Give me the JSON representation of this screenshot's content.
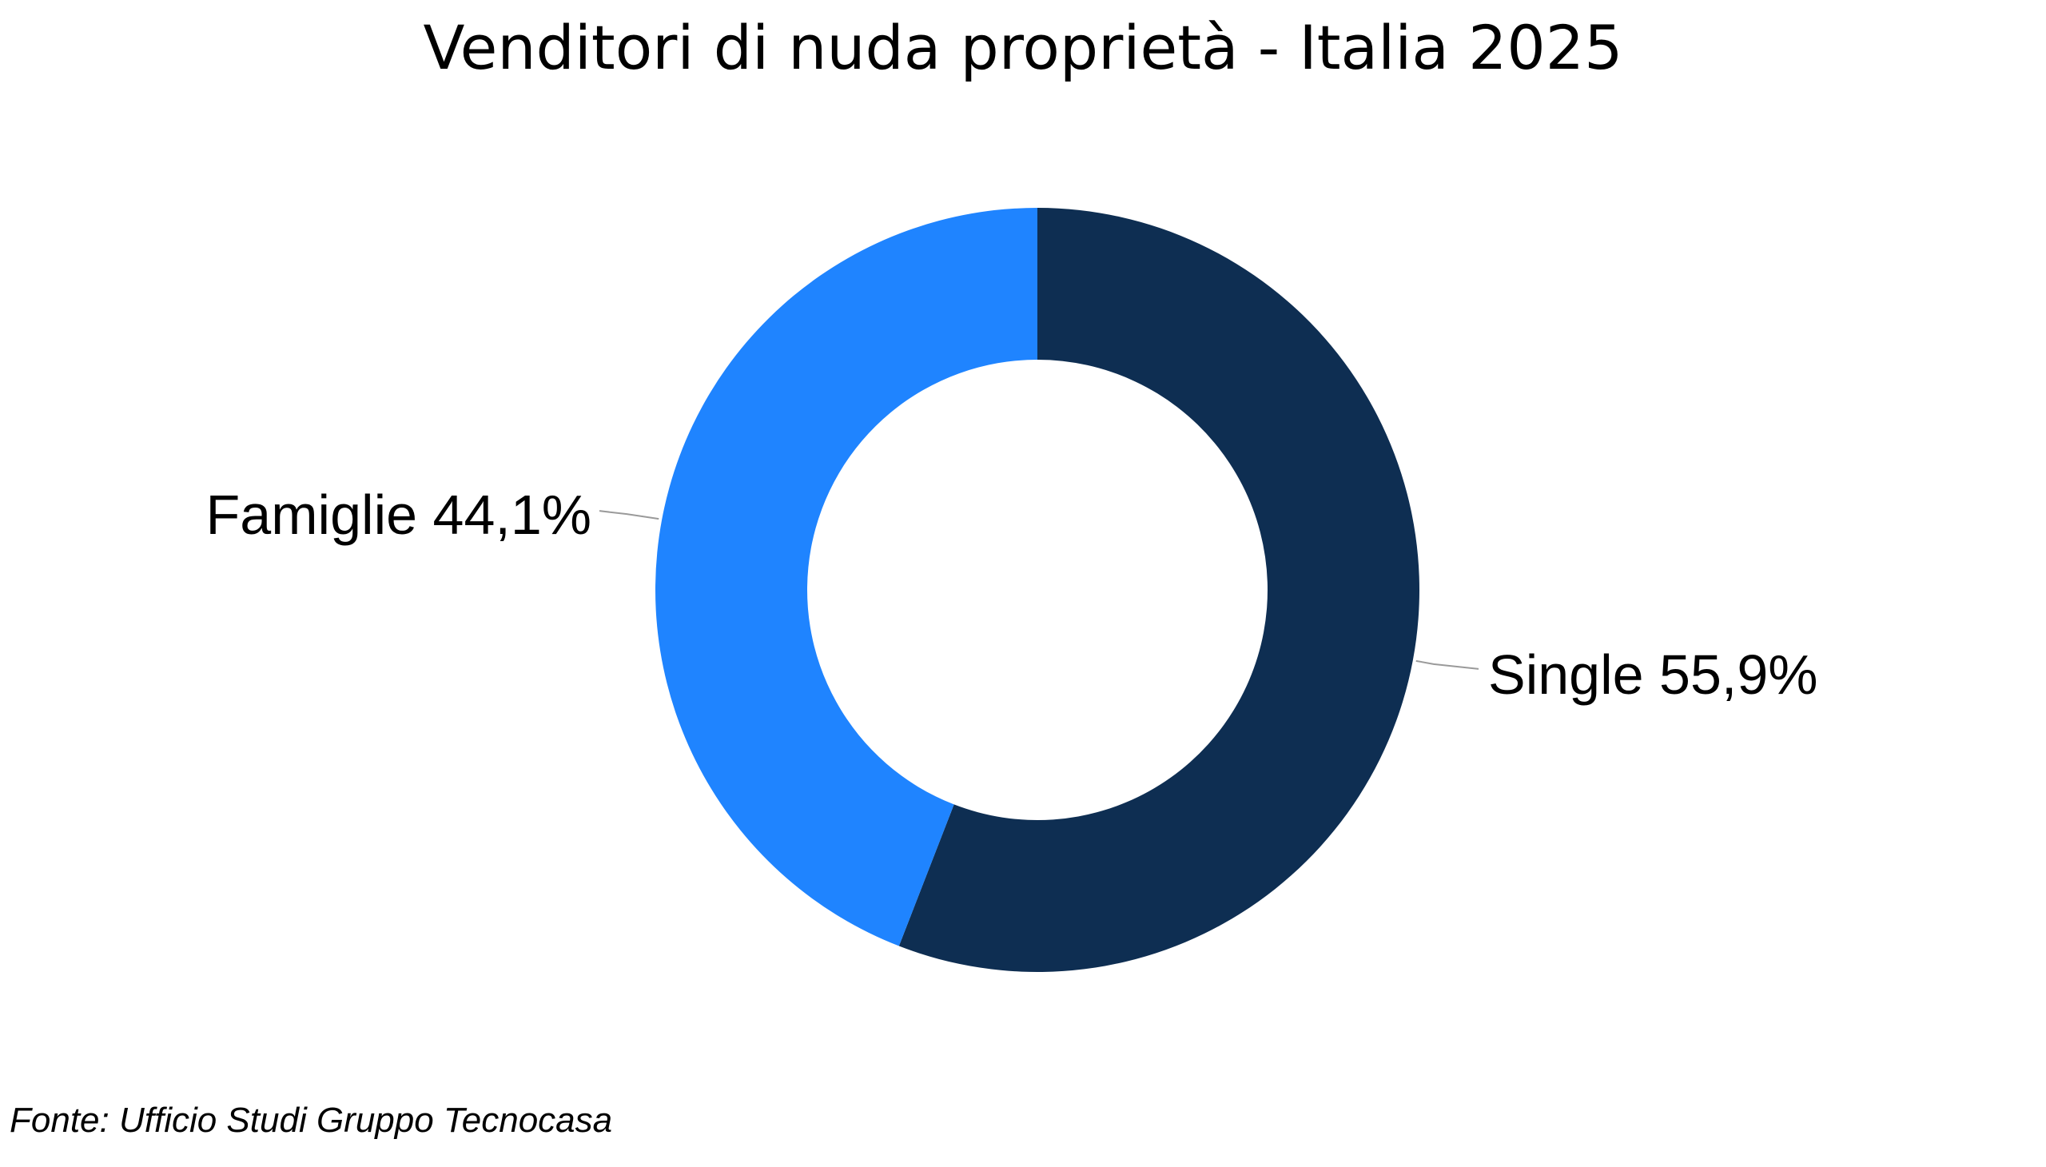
{
  "chart_data": {
    "type": "pie",
    "subtype": "donut",
    "title": "Venditori di nuda proprietà - Italia 2025",
    "slices": [
      {
        "name": "Single",
        "value": 55.9,
        "label": "Single 55,9%",
        "color": "#0e2e52"
      },
      {
        "name": "Famiglie",
        "value": 44.1,
        "label": "Famiglie 44,1%",
        "color": "#1f84ff"
      }
    ],
    "start_angle_deg": 0,
    "direction": "clockwise",
    "source": "Fonte: Ufficio Studi Gruppo Tecnocasa"
  }
}
